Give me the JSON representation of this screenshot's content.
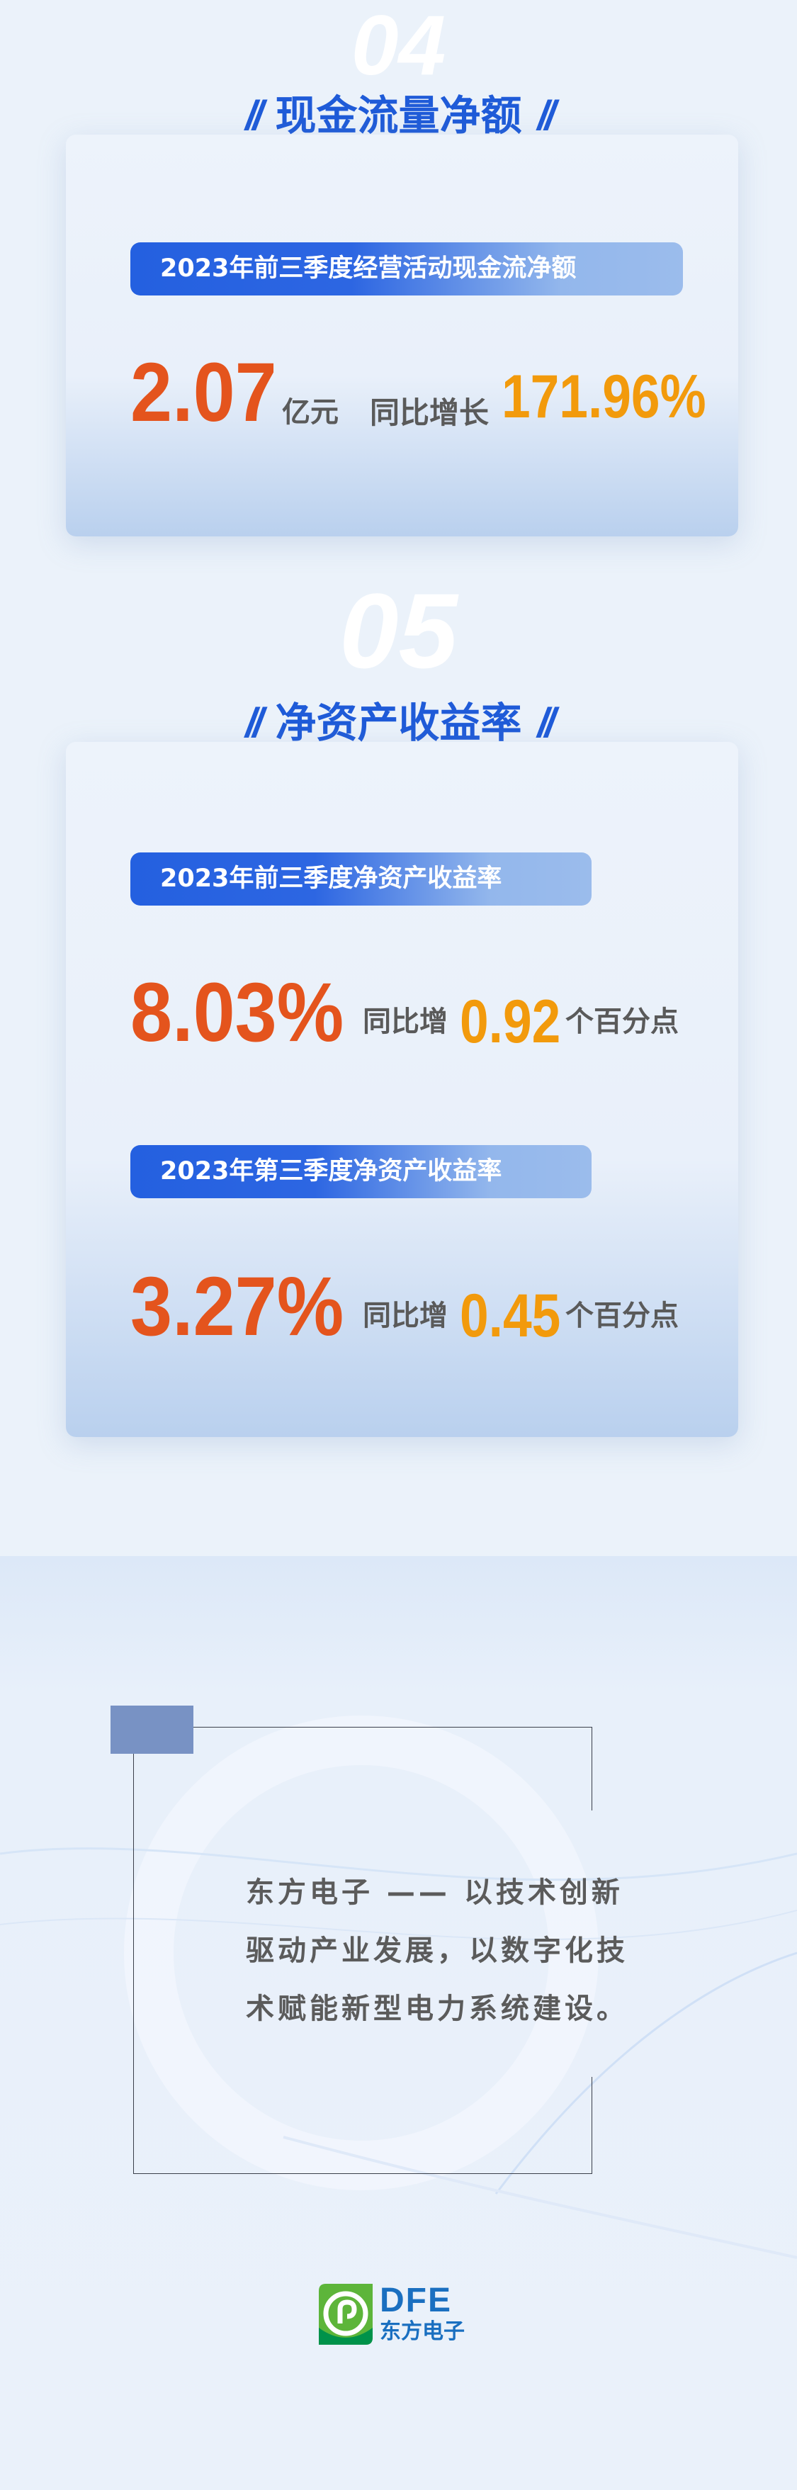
{
  "section1": {
    "number": "04",
    "title": "现金流量净额",
    "slashes": "//",
    "label": "2023年前三季度经营活动现金流净额",
    "value": "2.07",
    "unit": "亿元",
    "yoy_label": "同比增长",
    "yoy_value": "171.96%"
  },
  "section2": {
    "number": "05",
    "title": "净资产收益率",
    "slashes": "//",
    "items": [
      {
        "label": "2023年前三季度净资产收益率",
        "value": "8.03%",
        "yoy_label": "同比增",
        "yoy_value": "0.92",
        "yoy_unit": "个百分点"
      },
      {
        "label": "2023年第三季度净资产收益率",
        "value": "3.27%",
        "yoy_label": "同比增",
        "yoy_value": "0.45",
        "yoy_unit": "个百分点"
      }
    ]
  },
  "closing": {
    "quote_lines": [
      "东方电子 —— 以技术创新",
      "驱动产业发展，以数字化技",
      "术赋能新型电力系统建设。"
    ]
  },
  "logo": {
    "letters": "DFE",
    "name": "东方电子"
  },
  "colors": {
    "accent_blue": "#1f5bd8",
    "value_orange": "#e4541d",
    "yoy_amber": "#f29a0c",
    "logo_green": "#5db53a",
    "logo_blue": "#1a6fc0"
  }
}
